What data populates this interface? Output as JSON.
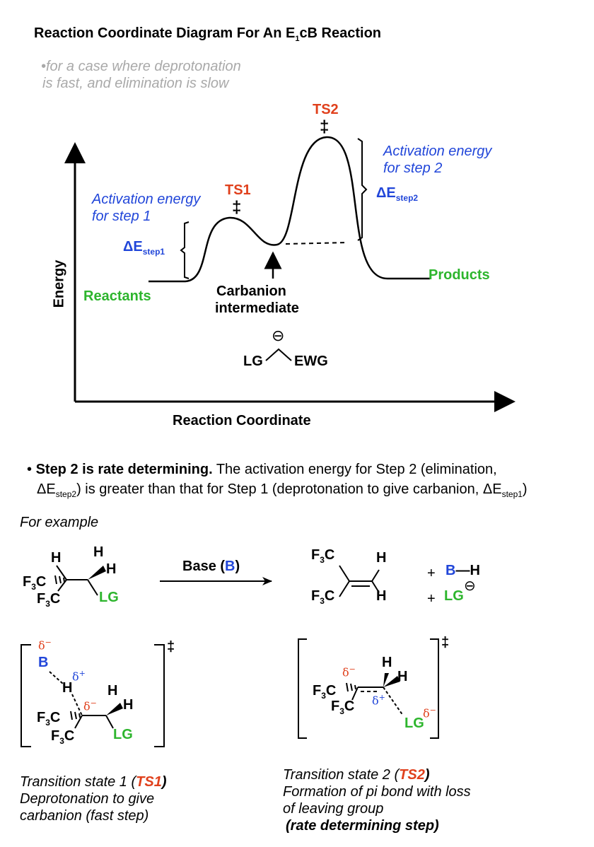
{
  "title": {
    "main": "Reaction Coordinate Diagram For An E",
    "sub": "1",
    "rest": "cB Reaction"
  },
  "note": {
    "line1": "•for a case where deprotonation",
    "line2": "is fast, and elimination is slow"
  },
  "diagram": {
    "y_axis_label": "Energy",
    "x_axis_label": "Reaction Coordinate",
    "reactants": "Reactants",
    "products": "Products",
    "ts1": "TS1",
    "ts2": "TS2",
    "dagger": "‡",
    "act1_line1": "Activation energy",
    "act1_line2": "for step 1",
    "act2_line1": "Activation energy",
    "act2_line2": "for step 2",
    "de1_main": "ΔE",
    "de1_sub": "step1",
    "de2_main": "ΔE",
    "de2_sub": "step2",
    "carbanion_line1": "Carbanion",
    "carbanion_line2": "intermediate",
    "lg": "LG",
    "ewg": "EWG",
    "minus": "⊖"
  },
  "para": {
    "bullet": "• ",
    "bold": "Step 2 is rate determining.",
    "text1": " The activation energy for Step 2 (elimination,",
    "de_main": "ΔE",
    "de_sub2": "step2",
    "text2": ")  is greater than that for Step 1 (deprotonation to give carbanion, ",
    "de_sub1": "step1",
    "text3": ")"
  },
  "example": "For example",
  "reaction": {
    "reagent": "Base (",
    "reagent_b": "B",
    "reagent_close": ")",
    "h": "H",
    "f3c": "F",
    "three": "3",
    "c": "C",
    "lg": "LG",
    "plus": "+",
    "b": "B",
    "dash_h": "—H",
    "minus": "⊖"
  },
  "ts_structures": {
    "b": "B",
    "h": "H",
    "delta": "δ",
    "minus_sup": "−",
    "plus_sup": "+",
    "lg": "LG",
    "dagger": "‡"
  },
  "captions": {
    "ts1_line1": "Transition state 1 (",
    "ts1_bold": "TS1",
    "ts1_close": ")",
    "ts1_line2": "Deprotonation to give",
    "ts1_line3": "carbanion (fast step)",
    "ts2_line1": "Transition state 2 (",
    "ts2_bold": "TS2",
    "ts2_close": ")",
    "ts2_line2": "Formation of pi bond with loss",
    "ts2_line3": "of leaving group",
    "ts2_line4": "(rate determining step)"
  }
}
